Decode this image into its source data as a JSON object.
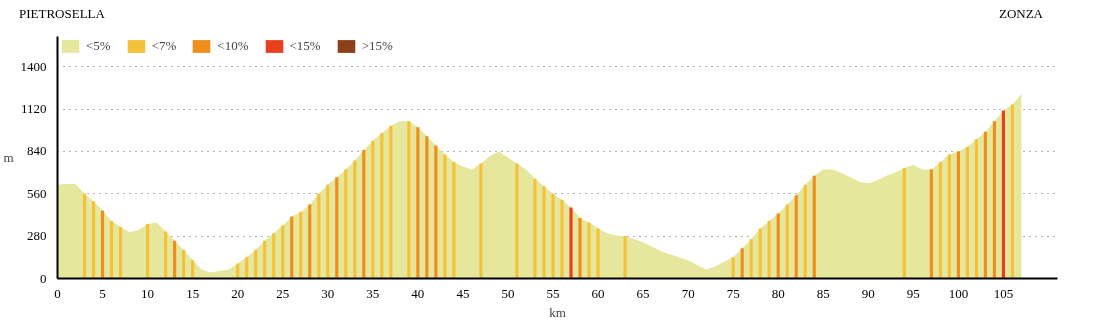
{
  "chart_data": {
    "type": "area",
    "xlabel": "km",
    "ylabel": "m",
    "annotations": [
      "PIETROSELLA",
      "ZONZA"
    ],
    "xlim": [
      0,
      111
    ],
    "ylim": [
      0,
      1600
    ],
    "xticks": [
      0,
      5,
      10,
      15,
      20,
      25,
      30,
      35,
      40,
      45,
      50,
      55,
      60,
      65,
      70,
      75,
      80,
      85,
      90,
      95,
      100,
      105
    ],
    "yticks": [
      0,
      280,
      560,
      840,
      1120,
      1400
    ],
    "grid": "y",
    "legend": "top left",
    "x": [
      0,
      1,
      2,
      3,
      4,
      5,
      6,
      7,
      8,
      9,
      10,
      11,
      12,
      13,
      14,
      15,
      16,
      17,
      18,
      19,
      20,
      21,
      22,
      23,
      24,
      25,
      26,
      27,
      28,
      29,
      30,
      31,
      32,
      33,
      34,
      35,
      36,
      37,
      38,
      39,
      40,
      41,
      42,
      43,
      44,
      45,
      46,
      47,
      48,
      49,
      50,
      51,
      52,
      53,
      54,
      55,
      56,
      57,
      58,
      59,
      60,
      61,
      62,
      63,
      64,
      65,
      66,
      67,
      68,
      69,
      70,
      71,
      72,
      73,
      74,
      75,
      76,
      77,
      78,
      79,
      80,
      81,
      82,
      83,
      84,
      85,
      86,
      87,
      88,
      89,
      90,
      91,
      92,
      93,
      94,
      95,
      96,
      97,
      98,
      99,
      100,
      101,
      102,
      103,
      104,
      105,
      106,
      107
    ],
    "series": [
      {
        "name": "<5%",
        "color": "#e6e69c",
        "values": [
          620,
          625,
          625,
          560,
          510,
          450,
          380,
          340,
          305,
          320,
          360,
          370,
          310,
          250,
          190,
          120,
          60,
          40,
          50,
          60,
          100,
          140,
          190,
          250,
          300,
          350,
          410,
          440,
          490,
          560,
          620,
          670,
          720,
          780,
          850,
          910,
          960,
          1010,
          1040,
          1040,
          1000,
          940,
          880,
          820,
          770,
          740,
          720,
          760,
          810,
          840,
          800,
          760,
          720,
          660,
          610,
          560,
          520,
          470,
          400,
          370,
          330,
          300,
          285,
          280,
          260,
          240,
          210,
          180,
          160,
          140,
          120,
          90,
          60,
          80,
          110,
          140,
          200,
          260,
          330,
          380,
          430,
          490,
          550,
          620,
          680,
          720,
          720,
          700,
          670,
          640,
          630,
          650,
          680,
          700,
          730,
          750,
          720,
          720,
          770,
          820,
          840,
          870,
          920,
          970,
          1040,
          1110,
          1150,
          1220
        ]
      },
      {
        "name": "<7%",
        "type": "bar",
        "color": "#f3c23a",
        "x": [
          3,
          4,
          6,
          7,
          10,
          12,
          14,
          15,
          20,
          21,
          22,
          23,
          24,
          25,
          27,
          29,
          30,
          32,
          33,
          35,
          36,
          37,
          39,
          43,
          44,
          47,
          51,
          53,
          54,
          55,
          56,
          59,
          60,
          63,
          75,
          77,
          78,
          79,
          81,
          83,
          94,
          98,
          99,
          101,
          102,
          106
        ],
        "values": [
          560,
          510,
          380,
          340,
          360,
          310,
          190,
          120,
          100,
          140,
          190,
          250,
          300,
          350,
          440,
          560,
          620,
          720,
          780,
          910,
          960,
          1010,
          1040,
          820,
          770,
          760,
          760,
          660,
          610,
          560,
          520,
          370,
          330,
          280,
          140,
          260,
          330,
          380,
          490,
          620,
          730,
          770,
          820,
          870,
          920,
          1150
        ]
      },
      {
        "name": "<10%",
        "type": "bar",
        "color": "#ee8e1c",
        "x": [
          5,
          13,
          26,
          28,
          31,
          34,
          40,
          41,
          42,
          58,
          76,
          80,
          82,
          84,
          97,
          100,
          103,
          104
        ],
        "values": [
          450,
          250,
          410,
          490,
          670,
          850,
          1000,
          940,
          880,
          400,
          200,
          430,
          550,
          680,
          720,
          840,
          970,
          1040
        ]
      },
      {
        "name": "<15%",
        "type": "bar",
        "color": "#e8401c",
        "x": [
          57,
          105
        ],
        "values": [
          470,
          1110
        ]
      },
      {
        "name": ">15%",
        "type": "bar",
        "color": "#8b3f1a",
        "values": [
          null,
          null,
          null,
          null,
          null,
          null,
          null,
          null,
          null,
          null,
          null,
          null,
          null,
          null,
          null,
          null,
          null,
          null,
          null,
          null,
          null,
          null,
          null,
          null,
          null,
          null,
          null,
          null,
          null,
          null,
          null,
          null,
          null,
          null,
          null,
          null,
          null,
          null,
          null,
          null,
          null,
          null,
          null,
          null,
          null,
          null,
          null,
          null,
          null,
          null,
          null,
          null,
          null,
          null,
          null,
          null,
          null,
          null,
          null,
          null,
          null,
          null,
          null,
          null,
          null,
          null,
          null,
          null,
          null,
          null,
          null,
          null,
          null,
          null,
          null,
          null,
          null,
          null,
          null,
          null,
          null,
          null,
          null,
          null,
          null,
          null,
          null,
          null,
          null,
          null,
          null,
          null,
          null,
          null,
          null,
          null,
          null,
          null,
          null,
          null,
          null,
          null,
          null,
          null,
          null,
          null,
          null,
          null
        ]
      }
    ]
  }
}
